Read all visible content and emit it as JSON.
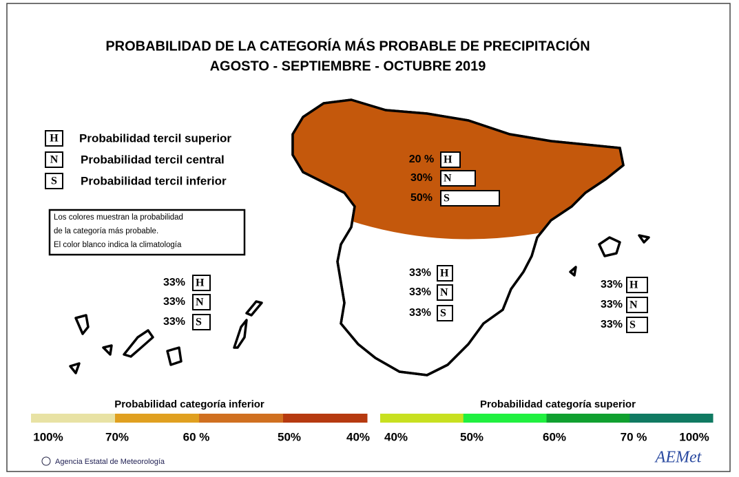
{
  "header": {
    "title": "PROBABILIDAD DE LA CATEGORÍA MÁS PROBABLE DE PRECIPITACIÓN",
    "subtitle": "AGOSTO - SEPTIEMBRE - OCTUBRE 2019"
  },
  "legend": [
    {
      "letter": "H",
      "label": "Probabilidad  tercil superior"
    },
    {
      "letter": "N",
      "label": "Probabilidad  tercil central"
    },
    {
      "letter": "S",
      "label": "Probabilidad  tercil inferior"
    }
  ],
  "note": [
    "Los colores muestran la probabilidad",
    "de la categoría más probable.",
    "El color blanco indica la climatología"
  ],
  "regions": [
    {
      "name": "norte",
      "color": "#c4580c",
      "boxes": [
        {
          "letter": "H",
          "label": "20 %"
        },
        {
          "letter": "N",
          "label": "30%"
        },
        {
          "letter": "S",
          "label": "50%"
        }
      ]
    },
    {
      "name": "centro",
      "boxes": [
        {
          "letter": "H",
          "label": "33%"
        },
        {
          "letter": "N",
          "label": "33%"
        },
        {
          "letter": "S",
          "label": "33%"
        }
      ]
    },
    {
      "name": "canarias",
      "boxes": [
        {
          "letter": "H",
          "label": "33%"
        },
        {
          "letter": "N",
          "label": "33%"
        },
        {
          "letter": "S",
          "label": "33%"
        }
      ]
    },
    {
      "name": "baleares",
      "boxes": [
        {
          "letter": "H",
          "label": "33%"
        },
        {
          "letter": "N",
          "label": "33%"
        },
        {
          "letter": "S",
          "label": "33%"
        }
      ]
    }
  ],
  "scales": [
    {
      "title": "Probabilidad categoría inferior",
      "colors": [
        "#e8e2a4",
        "#e0a020",
        "#d07020",
        "#b63a10"
      ],
      "labels": [
        "100%",
        "70%",
        "60 %",
        "50%",
        "40%"
      ]
    },
    {
      "title": "Probabilidad categoría superior",
      "colors": [
        "#c8e020",
        "#20f040",
        "#10a030",
        "#107a62"
      ],
      "labels": [
        "40%",
        "50%",
        "60%",
        "70 %",
        "100%"
      ]
    }
  ],
  "footer": {
    "credit": "Agencia Estatal de Meteorología",
    "logo": "AEMet"
  }
}
